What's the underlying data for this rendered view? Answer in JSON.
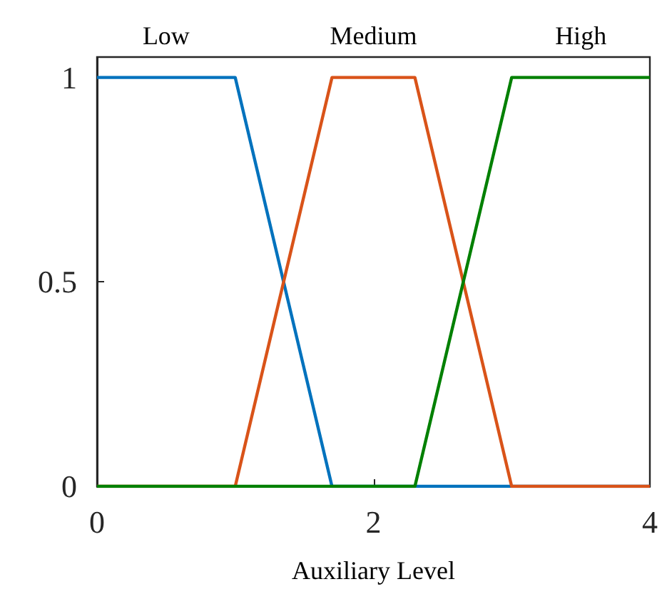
{
  "chart_data": {
    "type": "line",
    "xlabel": "Auxiliary Level",
    "xlim": [
      0,
      4
    ],
    "xticks": [
      0,
      2,
      4
    ],
    "ylim": [
      0,
      1.05
    ],
    "yticks": [
      0,
      0.5,
      1
    ],
    "grid": false,
    "legend": false,
    "marker": "none",
    "line_style": "solid",
    "series": [
      {
        "name": "Low",
        "color": "#0072bd",
        "x": [
          0,
          1,
          1.7,
          4
        ],
        "values": [
          1,
          1,
          0,
          0
        ]
      },
      {
        "name": "Medium",
        "color": "#d95319",
        "x": [
          0,
          1,
          1.7,
          2.3,
          3,
          4
        ],
        "values": [
          0,
          0,
          1,
          1,
          0,
          0
        ]
      },
      {
        "name": "High",
        "color": "#008000",
        "x": [
          0,
          2.3,
          3,
          4
        ],
        "values": [
          0,
          0,
          1,
          1
        ]
      }
    ]
  }
}
